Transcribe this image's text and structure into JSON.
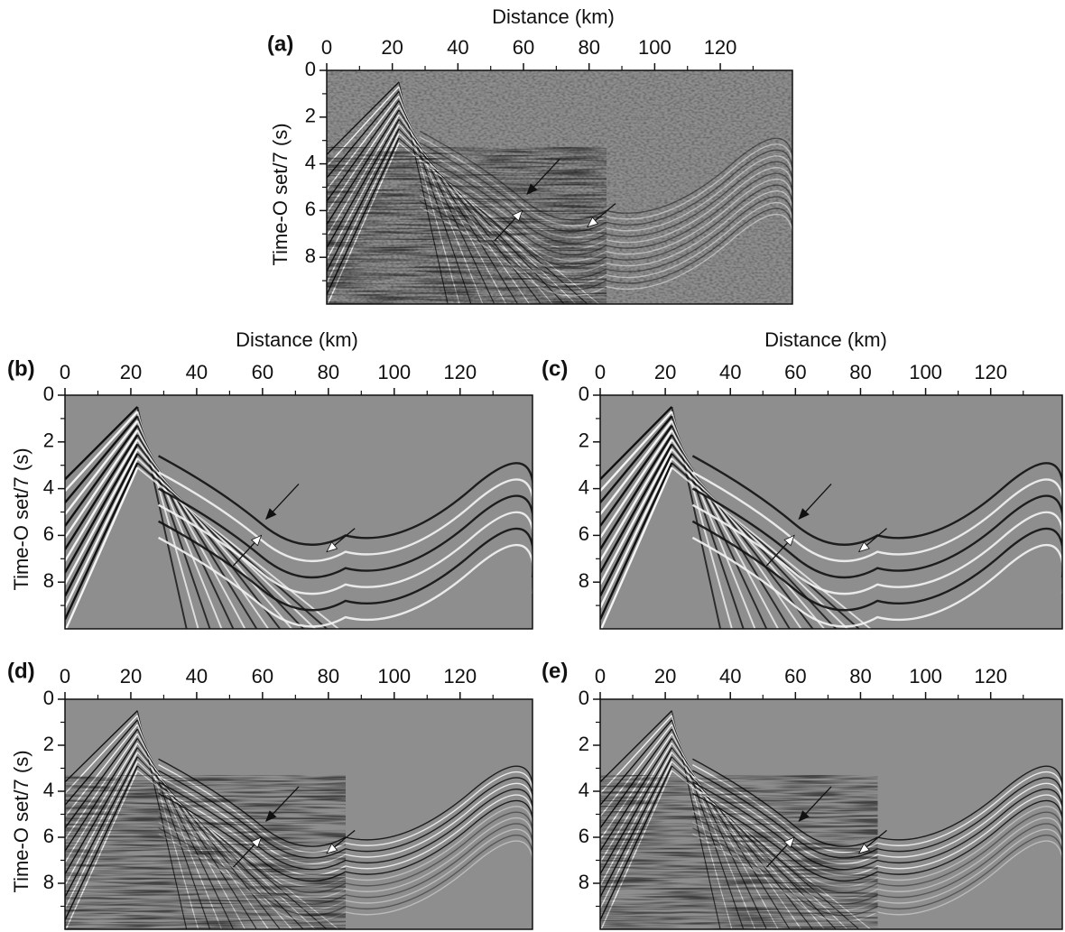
{
  "chart_data": [
    {
      "type": "image",
      "label": "(a)",
      "xlabel": "Distance (km)",
      "ylabel": "Time-O set/7 (s)",
      "xlim": [
        0,
        142
      ],
      "ylim": [
        0,
        10
      ],
      "xticks": [
        0,
        20,
        40,
        60,
        80,
        100,
        120
      ],
      "yticks": [
        0,
        2,
        4,
        6,
        8
      ],
      "xminorticks": [
        10,
        30,
        50,
        70,
        90,
        110,
        130
      ],
      "yminorticks": [
        1,
        3,
        5,
        7,
        9
      ],
      "y_reversed": true,
      "style": "noisy"
    },
    {
      "type": "image",
      "label": "(b)",
      "xlabel": "Distance (km)",
      "ylabel": "Time-O set/7 (s)",
      "xlim": [
        0,
        142
      ],
      "ylim": [
        0,
        10
      ],
      "xticks": [
        0,
        20,
        40,
        60,
        80,
        100,
        120
      ],
      "yticks": [
        0,
        2,
        4,
        6,
        8
      ],
      "xminorticks": [
        10,
        30,
        50,
        70,
        90,
        110,
        130
      ],
      "yminorticks": [
        1,
        3,
        5,
        7,
        9
      ],
      "y_reversed": true,
      "style": "smooth"
    },
    {
      "type": "image",
      "label": "(c)",
      "xlabel": "Distance (km)",
      "xlim": [
        0,
        142
      ],
      "ylim": [
        0,
        10
      ],
      "xticks": [
        0,
        20,
        40,
        60,
        80,
        100,
        120
      ],
      "yticks": [
        0,
        2,
        4,
        6,
        8
      ],
      "xminorticks": [
        10,
        30,
        50,
        70,
        90,
        110,
        130
      ],
      "yminorticks": [
        1,
        3,
        5,
        7,
        9
      ],
      "y_reversed": true,
      "style": "smooth"
    },
    {
      "type": "image",
      "label": "(d)",
      "ylabel": "Time-O set/7 (s)",
      "xlim": [
        0,
        142
      ],
      "ylim": [
        0,
        10
      ],
      "xticks": [
        0,
        20,
        40,
        60,
        80,
        100,
        120
      ],
      "yticks": [
        0,
        2,
        4,
        6,
        8
      ],
      "xminorticks": [
        10,
        30,
        50,
        70,
        90,
        110,
        130
      ],
      "yminorticks": [
        1,
        3,
        5,
        7,
        9
      ],
      "y_reversed": true,
      "style": "detailed"
    },
    {
      "type": "image",
      "label": "(e)",
      "xlim": [
        0,
        142
      ],
      "ylim": [
        0,
        10
      ],
      "xticks": [
        0,
        20,
        40,
        60,
        80,
        100,
        120
      ],
      "yticks": [
        0,
        2,
        4,
        6,
        8
      ],
      "xminorticks": [
        10,
        30,
        50,
        70,
        90,
        110,
        130
      ],
      "yminorticks": [
        1,
        3,
        5,
        7,
        9
      ],
      "y_reversed": true,
      "style": "detailed"
    }
  ]
}
